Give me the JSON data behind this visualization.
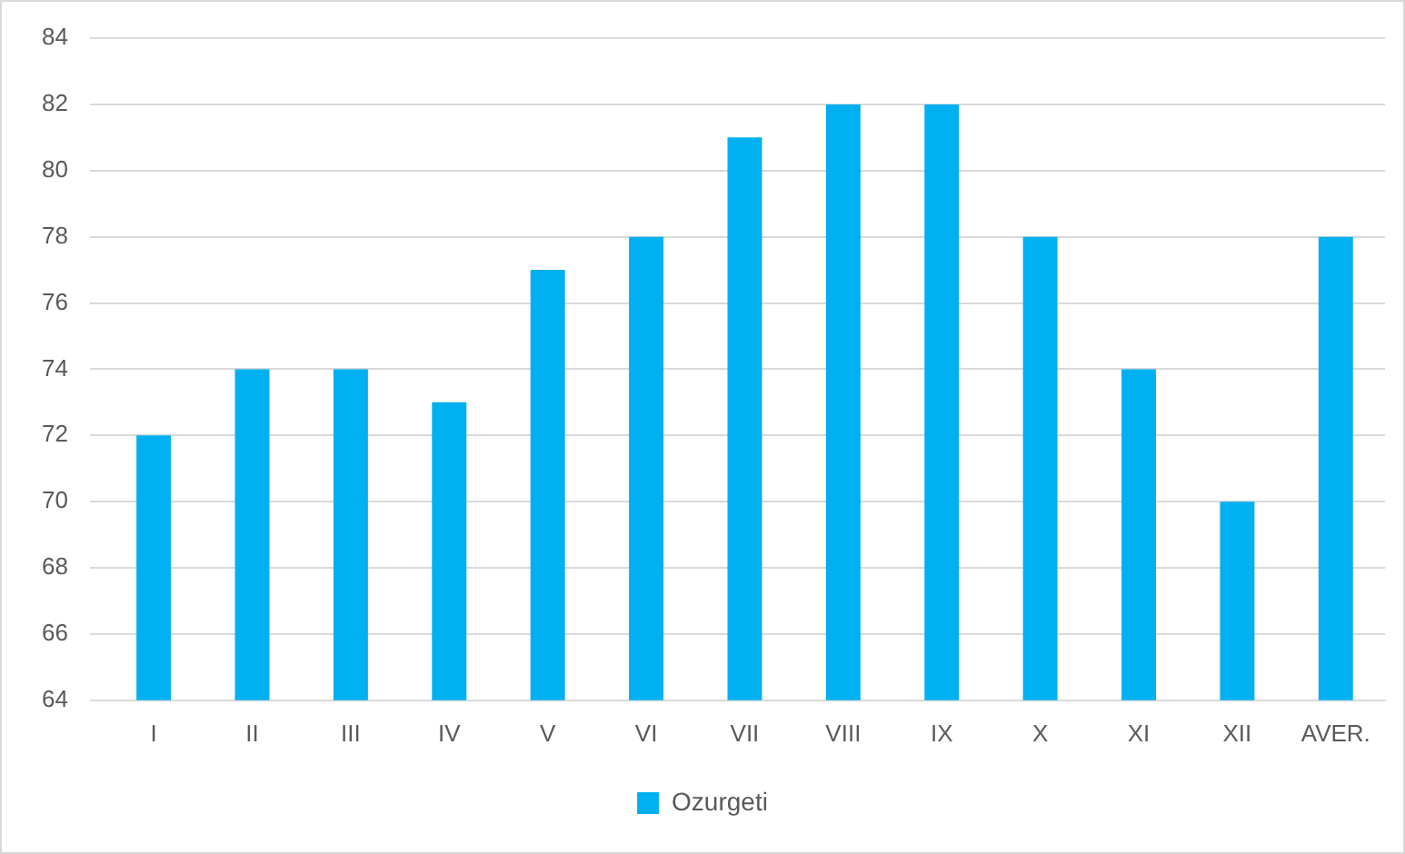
{
  "chart_data": {
    "type": "bar",
    "categories": [
      "I",
      "II",
      "III",
      "IV",
      "V",
      "VI",
      "VII",
      "VIII",
      "IX",
      "X",
      "XI",
      "XII",
      "AVER."
    ],
    "series": [
      {
        "name": "Ozurgeti",
        "color": "#00b0f0",
        "values": [
          72,
          74,
          74,
          73,
          77,
          78,
          81,
          82,
          82,
          78,
          74,
          70,
          78
        ]
      }
    ],
    "ylim": [
      64,
      84
    ],
    "yticks": [
      64,
      66,
      68,
      70,
      72,
      74,
      76,
      78,
      80,
      82,
      84
    ],
    "grid": "y",
    "legend": "bottom"
  }
}
